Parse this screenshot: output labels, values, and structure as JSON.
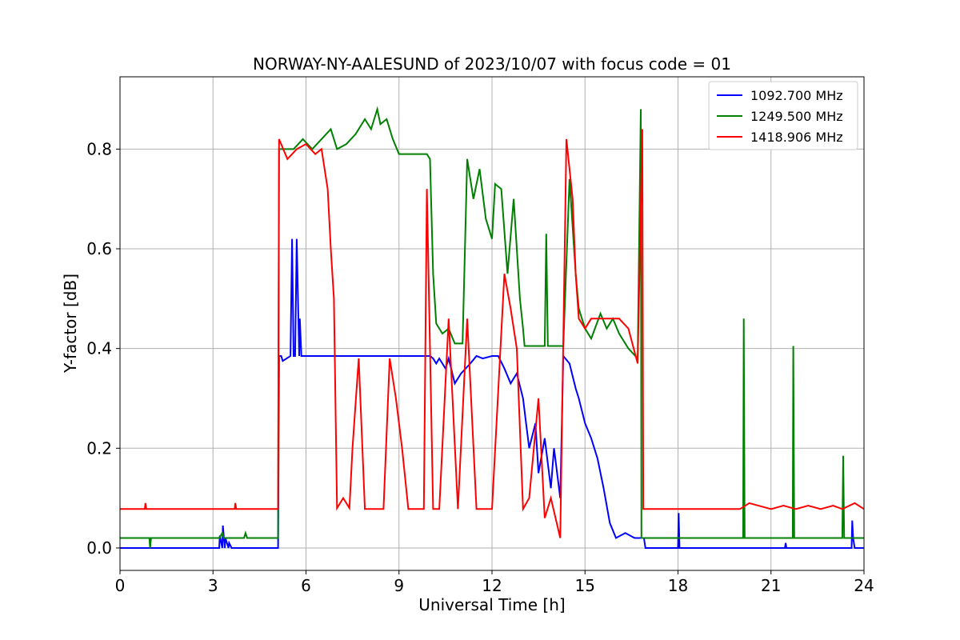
{
  "chart_data": {
    "type": "line",
    "title": "NORWAY-NY-AALESUND of 2023/10/07 with focus code = 01",
    "xlabel": "Universal Time [h]",
    "ylabel": "Y-factor [dB]",
    "xlim": [
      0,
      24
    ],
    "ylim": [
      -0.045,
      0.945
    ],
    "xticks": [
      0,
      3,
      6,
      9,
      12,
      15,
      18,
      21,
      24
    ],
    "xtick_labels": [
      "0",
      "3",
      "6",
      "9",
      "12",
      "15",
      "18",
      "21",
      "24"
    ],
    "yticks": [
      0.0,
      0.2,
      0.4,
      0.6,
      0.8
    ],
    "ytick_labels": [
      "0.0",
      "0.2",
      "0.4",
      "0.6",
      "0.8"
    ],
    "grid": true,
    "legend_position": "top-right",
    "series": [
      {
        "name": "1092.700 MHz",
        "color": "#0000ff",
        "x": [
          0,
          3.2,
          3.22,
          3.3,
          3.32,
          3.38,
          3.4,
          3.5,
          3.52,
          3.6,
          5.1,
          5.13,
          5.2,
          5.25,
          5.5,
          5.55,
          5.6,
          5.65,
          5.7,
          5.78,
          5.8,
          5.85,
          5.9,
          6.5,
          9.0,
          10.0,
          10.1,
          10.2,
          10.3,
          10.5,
          10.6,
          10.8,
          11.0,
          11.3,
          11.5,
          11.7,
          12.0,
          12.2,
          12.4,
          12.6,
          12.8,
          13.0,
          13.1,
          13.2,
          13.4,
          13.5,
          13.7,
          13.9,
          14.0,
          14.2,
          14.3,
          14.5,
          14.7,
          14.8,
          15.0,
          15.2,
          15.4,
          15.6,
          15.8,
          16.0,
          16.3,
          16.6,
          16.9,
          16.95,
          17.5,
          18.0,
          18.02,
          18.05,
          21.0,
          21.45,
          21.47,
          21.5,
          23.6,
          23.62,
          23.65,
          23.7,
          24
        ],
        "values": [
          0.0,
          0.0,
          0.025,
          0.0,
          0.045,
          0.0,
          0.02,
          0.0,
          0.01,
          0.0,
          0.0,
          0.385,
          0.385,
          0.375,
          0.385,
          0.62,
          0.385,
          0.385,
          0.62,
          0.385,
          0.46,
          0.385,
          0.385,
          0.385,
          0.385,
          0.385,
          0.38,
          0.37,
          0.38,
          0.36,
          0.38,
          0.33,
          0.35,
          0.37,
          0.385,
          0.38,
          0.385,
          0.385,
          0.36,
          0.33,
          0.35,
          0.3,
          0.25,
          0.2,
          0.25,
          0.15,
          0.22,
          0.12,
          0.2,
          0.1,
          0.385,
          0.37,
          0.32,
          0.3,
          0.25,
          0.22,
          0.18,
          0.12,
          0.05,
          0.02,
          0.03,
          0.02,
          0.02,
          0.0,
          0.0,
          0.0,
          0.07,
          0.0,
          0.0,
          0.0,
          0.01,
          0.0,
          0.0,
          0.055,
          0.02,
          0.0,
          0.0
        ]
      },
      {
        "name": "1249.500 MHz",
        "color": "#008000",
        "x": [
          0,
          0.95,
          0.97,
          1.0,
          3.2,
          3.3,
          3.35,
          3.4,
          4.0,
          4.05,
          4.1,
          5.1,
          5.13,
          5.3,
          5.6,
          5.9,
          6.2,
          6.5,
          6.8,
          7.0,
          7.3,
          7.6,
          7.9,
          8.1,
          8.3,
          8.4,
          8.6,
          8.8,
          9.0,
          9.3,
          9.6,
          9.9,
          10.0,
          10.1,
          10.2,
          10.4,
          10.6,
          10.8,
          11.0,
          11.05,
          11.2,
          11.4,
          11.6,
          11.8,
          12.0,
          12.1,
          12.3,
          12.5,
          12.7,
          12.9,
          13.0,
          13.05,
          13.5,
          13.7,
          13.75,
          13.8,
          14.0,
          14.3,
          14.5,
          14.7,
          14.8,
          15.0,
          15.2,
          15.5,
          15.7,
          15.9,
          16.1,
          16.4,
          16.7,
          16.8,
          16.82,
          16.9,
          17.0,
          20.1,
          20.12,
          20.15,
          21.7,
          21.72,
          21.75,
          23.3,
          23.33,
          23.36,
          24
        ],
        "values": [
          0.02,
          0.02,
          0.0,
          0.02,
          0.02,
          0.03,
          0.02,
          0.02,
          0.02,
          0.03,
          0.02,
          0.02,
          0.8,
          0.8,
          0.8,
          0.82,
          0.8,
          0.82,
          0.84,
          0.8,
          0.81,
          0.83,
          0.86,
          0.84,
          0.88,
          0.85,
          0.86,
          0.82,
          0.79,
          0.79,
          0.79,
          0.79,
          0.78,
          0.55,
          0.45,
          0.43,
          0.44,
          0.41,
          0.41,
          0.41,
          0.78,
          0.7,
          0.76,
          0.66,
          0.62,
          0.73,
          0.72,
          0.55,
          0.7,
          0.5,
          0.44,
          0.405,
          0.405,
          0.405,
          0.63,
          0.405,
          0.405,
          0.405,
          0.74,
          0.55,
          0.48,
          0.44,
          0.42,
          0.47,
          0.44,
          0.46,
          0.43,
          0.4,
          0.38,
          0.88,
          0.02,
          0.02,
          0.02,
          0.02,
          0.46,
          0.02,
          0.02,
          0.405,
          0.02,
          0.02,
          0.185,
          0.02,
          0.02
        ]
      },
      {
        "name": "1418.906 MHz",
        "color": "#ff0000",
        "x": [
          0,
          0.8,
          0.82,
          0.85,
          3.7,
          3.72,
          3.75,
          5.1,
          5.13,
          5.4,
          5.7,
          6.0,
          6.3,
          6.5,
          6.7,
          6.8,
          6.9,
          7.0,
          7.2,
          7.4,
          7.5,
          7.7,
          7.9,
          8.1,
          8.5,
          8.7,
          8.9,
          9.1,
          9.3,
          9.8,
          9.9,
          10.1,
          10.3,
          10.6,
          10.9,
          11.2,
          11.5,
          12.0,
          12.4,
          12.6,
          12.8,
          13.0,
          13.2,
          13.5,
          13.7,
          13.9,
          14.2,
          14.4,
          14.6,
          14.7,
          14.8,
          15.0,
          15.2,
          15.5,
          15.8,
          16.1,
          16.4,
          16.7,
          16.85,
          16.88,
          16.9,
          18.0,
          19.0,
          20.0,
          20.3,
          21.0,
          21.4,
          21.8,
          22.2,
          22.6,
          23.0,
          23.3,
          23.7,
          24
        ],
        "values": [
          0.078,
          0.078,
          0.09,
          0.078,
          0.078,
          0.09,
          0.078,
          0.078,
          0.82,
          0.78,
          0.8,
          0.81,
          0.79,
          0.8,
          0.72,
          0.6,
          0.5,
          0.08,
          0.1,
          0.08,
          0.2,
          0.38,
          0.078,
          0.078,
          0.078,
          0.38,
          0.3,
          0.2,
          0.078,
          0.078,
          0.72,
          0.078,
          0.078,
          0.46,
          0.078,
          0.46,
          0.078,
          0.078,
          0.55,
          0.48,
          0.4,
          0.078,
          0.1,
          0.3,
          0.06,
          0.1,
          0.02,
          0.82,
          0.7,
          0.55,
          0.46,
          0.44,
          0.46,
          0.46,
          0.46,
          0.46,
          0.44,
          0.37,
          0.84,
          0.078,
          0.078,
          0.078,
          0.078,
          0.078,
          0.09,
          0.078,
          0.085,
          0.078,
          0.085,
          0.078,
          0.085,
          0.078,
          0.09,
          0.078
        ]
      }
    ]
  }
}
